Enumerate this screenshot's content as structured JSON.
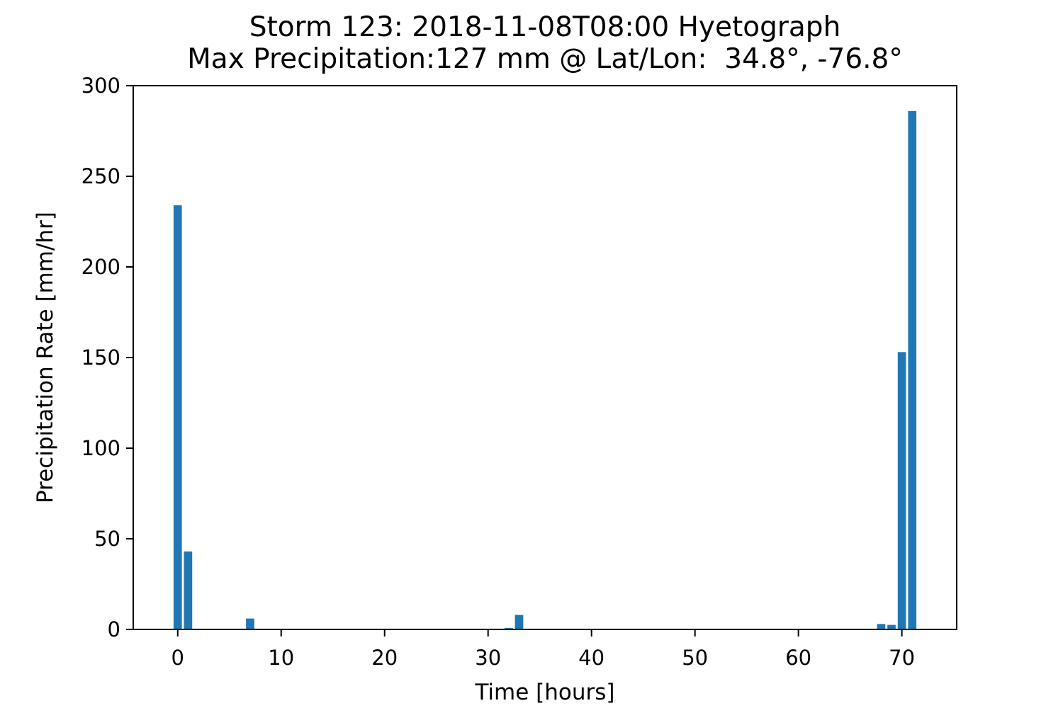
{
  "chart_data": {
    "type": "bar",
    "title": "Storm 123: 2018-11-08T08:00 Hyetograph",
    "subtitle": "Max Precipitation:127 mm @ Lat/Lon:  34.8°, -76.8°",
    "xlabel": "Time [hours]",
    "ylabel": "Precipitation Rate [mm/hr]",
    "xlim": [
      -4.3,
      75.3
    ],
    "ylim": [
      0,
      300
    ],
    "xticks": [
      0,
      10,
      20,
      30,
      40,
      50,
      60,
      70
    ],
    "yticks": [
      0,
      50,
      100,
      150,
      200,
      250,
      300
    ],
    "bar_width": 0.8,
    "bar_color": "#1f77b4",
    "grid": false,
    "x": [
      0,
      1,
      7,
      32,
      33,
      68,
      69,
      70,
      71
    ],
    "values": [
      234,
      43,
      6,
      0.8,
      8,
      3,
      2.5,
      153,
      286
    ]
  }
}
